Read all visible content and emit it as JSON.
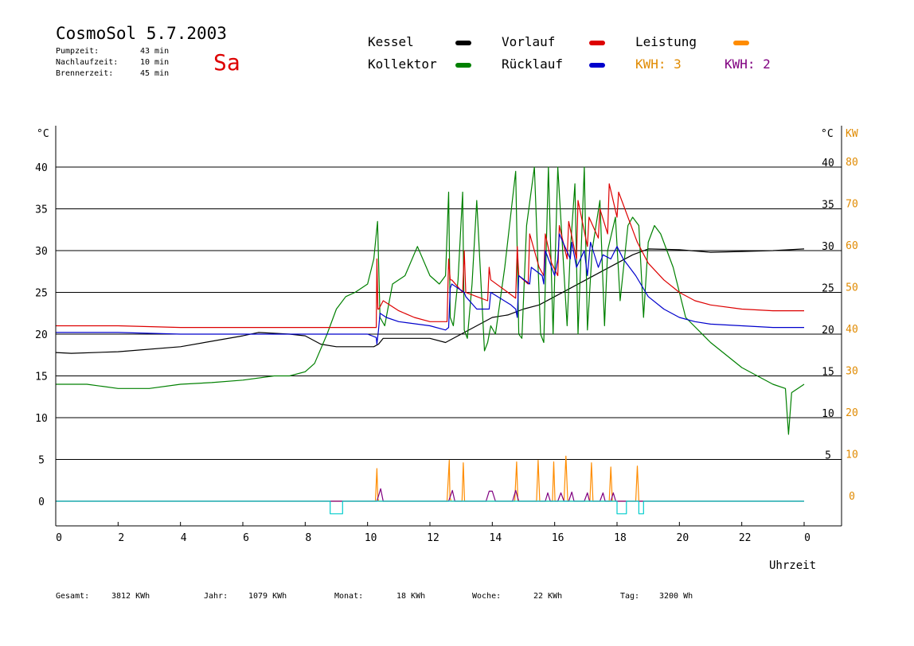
{
  "header": {
    "title": "CosmoSol 5.7.2003",
    "day": "Sa",
    "times": [
      {
        "label": "Pumpzeit:",
        "value": "43 min"
      },
      {
        "label": "Nachlaufzeit:",
        "value": "10 min"
      },
      {
        "label": "Brennerzeit:",
        "value": "45 min"
      }
    ]
  },
  "legend": {
    "kessel": "Kessel",
    "kollektor": "Kollektor",
    "vorlauf": "Vorlauf",
    "ruecklauf": "Rücklauf",
    "leistung": "Leistung",
    "kwh1": "KWH: 3",
    "kwh2": "KWH: 2"
  },
  "colors": {
    "kessel": "#000000",
    "kollektor": "#008000",
    "vorlauf": "#dd0000",
    "ruecklauf": "#0000cc",
    "leistung": "#ff8c00",
    "kwh2": "#800080",
    "pump": "#00cccc",
    "day": "#dd0000",
    "kwh1_text": "#e08a00",
    "kwh2_text": "#800080"
  },
  "footer": {
    "gesamt_label": "Gesamt:",
    "gesamt_value": "3812 KWh",
    "jahr_label": "Jahr:",
    "jahr_value": "1079 KWh",
    "monat_label": "Monat:",
    "monat_value": "18 KWh",
    "woche_label": "Woche:",
    "woche_value": "22 KWh",
    "tag_label": "Tag:",
    "tag_value": "3200 Wh"
  },
  "chart_data": {
    "type": "line",
    "xlabel": "Uhrzeit",
    "ylabel_left": "°C",
    "ylabel_right_1": "°C",
    "ylabel_right_2": "KW",
    "xlim": [
      0,
      24
    ],
    "ylim": [
      -3,
      44
    ],
    "x_ticks": [
      "0",
      "2",
      "4",
      "6",
      "8",
      "10",
      "12",
      "14",
      "16",
      "18",
      "20",
      "22",
      "0"
    ],
    "y_ticks_left": [
      "0",
      "5",
      "10",
      "15",
      "20",
      "25",
      "30",
      "35",
      "40"
    ],
    "y_ticks_right": [
      "5",
      "10",
      "15",
      "20",
      "25",
      "30",
      "35",
      "40"
    ],
    "y_ticks_kw": [
      "0",
      "10",
      "20",
      "30",
      "40",
      "50",
      "60",
      "70",
      "80"
    ],
    "grid": true,
    "series": [
      {
        "name": "Kessel",
        "key": "kessel",
        "x": [
          0,
          0.5,
          2,
          4,
          6,
          6.5,
          7.5,
          8,
          8.5,
          9,
          9.5,
          10.2,
          10.35,
          10.5,
          12,
          12.5,
          13,
          13.5,
          14,
          14.5,
          15,
          15.5,
          16,
          16.5,
          17,
          17.5,
          18,
          18.5,
          19,
          20,
          21,
          22,
          23,
          24
        ],
        "y": [
          17.8,
          17.7,
          17.9,
          18.5,
          19.8,
          20.2,
          20,
          19.8,
          18.8,
          18.5,
          18.5,
          18.5,
          18.8,
          19.5,
          19.5,
          19,
          20,
          21,
          22,
          22.3,
          23,
          23.5,
          24.5,
          25.5,
          26.5,
          27.5,
          28.5,
          29.5,
          30.2,
          30.1,
          29.8,
          29.9,
          30.0,
          30.2
        ]
      },
      {
        "name": "Kollektor",
        "key": "kollektor",
        "x": [
          0,
          1,
          2,
          3,
          4,
          5,
          6,
          7,
          7.5,
          8,
          8.3,
          8.7,
          9.0,
          9.3,
          9.6,
          10,
          10.2,
          10.32,
          10.4,
          10.55,
          10.8,
          11.2,
          11.6,
          12,
          12.3,
          12.5,
          12.6,
          12.65,
          12.75,
          12.9,
          13.05,
          13.1,
          13.2,
          13.35,
          13.5,
          13.75,
          13.85,
          13.95,
          14.1,
          14.4,
          14.75,
          14.85,
          14.95,
          15.1,
          15.35,
          15.55,
          15.65,
          15.8,
          15.95,
          16.1,
          16.4,
          16.5,
          16.65,
          16.75,
          16.95,
          17.05,
          17.2,
          17.45,
          17.6,
          17.7,
          17.95,
          18.1,
          18.35,
          18.5,
          18.7,
          18.85,
          19,
          19.2,
          19.4,
          19.8,
          20.2,
          21,
          22,
          23,
          23.4,
          23.5,
          23.6,
          23.8,
          24
        ],
        "y": [
          14,
          14,
          13.5,
          13.5,
          14,
          14.2,
          14.5,
          15,
          15,
          15.5,
          16.5,
          20,
          23,
          24.5,
          25,
          26,
          29,
          33.5,
          22,
          21,
          26,
          27,
          30.5,
          27,
          26,
          27,
          37,
          22,
          21,
          26.5,
          37,
          20.5,
          19.5,
          26,
          36,
          18,
          19,
          21,
          20,
          28,
          39.5,
          20,
          19.5,
          33,
          40,
          20,
          19,
          40,
          20,
          40,
          21,
          30,
          38,
          20,
          40,
          20.5,
          30,
          36,
          21,
          30,
          34,
          24,
          33,
          34,
          33,
          22,
          31,
          33,
          32,
          28,
          22,
          19,
          16,
          14,
          13.5,
          8,
          13,
          13.5,
          14
        ]
      },
      {
        "name": "Vorlauf",
        "key": "vorlauf",
        "x": [
          0,
          2,
          4,
          8,
          9,
          10,
          10.28,
          10.3,
          10.33,
          10.36,
          10.5,
          11,
          11.5,
          12,
          12.55,
          12.6,
          12.65,
          12.7,
          13.05,
          13.1,
          13.15,
          13.5,
          13.85,
          13.9,
          13.95,
          14.5,
          14.75,
          14.8,
          14.85,
          15.15,
          15.2,
          15.5,
          15.65,
          15.7,
          15.9,
          16.1,
          16.15,
          16.4,
          16.45,
          16.7,
          16.75,
          17.05,
          17.1,
          17.4,
          17.45,
          17.7,
          17.75,
          18,
          18.05,
          18.6,
          18.65,
          19,
          19.5,
          20,
          20.5,
          21,
          22,
          23,
          24
        ],
        "y": [
          21,
          21,
          20.8,
          20.8,
          20.8,
          20.8,
          20.8,
          29,
          23,
          23,
          24,
          22.8,
          22,
          21.5,
          21.5,
          29,
          26.5,
          26.5,
          25,
          30,
          25,
          24.5,
          24,
          28,
          26.5,
          25,
          24.3,
          30.5,
          27,
          26,
          32,
          28,
          27,
          32,
          28.5,
          27,
          33,
          29,
          33.5,
          29,
          36,
          30.5,
          34,
          31.5,
          35,
          32,
          38,
          34,
          37,
          31.5,
          31,
          28.5,
          26.5,
          25,
          24,
          23.5,
          23,
          22.8,
          22.8
        ]
      },
      {
        "name": "Rücklauf",
        "key": "ruecklauf",
        "x": [
          0,
          2,
          4,
          8,
          9,
          10,
          10.28,
          10.3,
          10.35,
          10.4,
          10.6,
          11,
          12,
          12.5,
          12.6,
          12.65,
          12.7,
          13.1,
          13.15,
          13.5,
          13.9,
          13.95,
          14.6,
          14.75,
          14.8,
          14.85,
          15.2,
          15.25,
          15.6,
          15.65,
          15.7,
          16,
          16.1,
          16.15,
          16.5,
          16.55,
          16.7,
          16.95,
          17.05,
          17.15,
          17.4,
          17.55,
          17.8,
          18.0,
          18.2,
          18.6,
          19,
          19.5,
          20,
          20.5,
          21,
          22,
          23,
          24
        ],
        "y": [
          20.2,
          20.2,
          20.0,
          20.0,
          20.0,
          20.0,
          19.6,
          18.8,
          20.5,
          22.5,
          22,
          21.5,
          21,
          20.5,
          20.8,
          25.5,
          26,
          25,
          24.5,
          23,
          23,
          25,
          23.5,
          23,
          22,
          27,
          26,
          28,
          27,
          26,
          30,
          27,
          29,
          32,
          29,
          31,
          28,
          30,
          27,
          31,
          28,
          29.5,
          29,
          30.5,
          29,
          27,
          24.5,
          23,
          22,
          21.5,
          21.2,
          21,
          20.8,
          20.8
        ]
      },
      {
        "name": "Leistung",
        "key": "leistung",
        "x": [
          0,
          10.25,
          10.3,
          10.33,
          10.36,
          12.55,
          12.62,
          12.64,
          12.68,
          13.03,
          13.07,
          13.11,
          14.72,
          14.78,
          14.82,
          15.42,
          15.47,
          15.52,
          15.93,
          15.97,
          16.01,
          16.3,
          16.36,
          16.42,
          17.13,
          17.18,
          17.23,
          17.75,
          17.8,
          17.85,
          18.6,
          18.65,
          18.7,
          24
        ],
        "y": [
          0,
          0,
          3.9,
          0.3,
          0,
          0,
          4.9,
          0.5,
          0,
          0,
          4.6,
          0,
          0,
          4.7,
          0,
          0,
          4.9,
          0,
          0,
          4.7,
          0,
          0,
          5.4,
          0,
          0,
          4.6,
          0,
          0,
          4.1,
          0,
          0,
          4.2,
          0,
          0
        ]
      },
      {
        "name": "KWH2",
        "key": "kwh2",
        "x": [
          0,
          10.3,
          10.42,
          10.5,
          12.6,
          12.72,
          12.8,
          13.8,
          13.9,
          14.0,
          14.1,
          14.65,
          14.75,
          14.85,
          15.7,
          15.78,
          15.86,
          16.1,
          16.2,
          16.3,
          16.45,
          16.55,
          16.62,
          16.95,
          17.05,
          17.12,
          17.45,
          17.55,
          17.62,
          17.8,
          17.88,
          17.96,
          24
        ],
        "y": [
          0,
          0,
          1.5,
          0,
          0,
          1.3,
          0,
          0,
          1.2,
          1.2,
          0,
          0,
          1.3,
          0,
          0,
          1,
          0,
          0,
          1,
          0,
          0,
          1.1,
          0,
          0,
          1,
          0,
          0,
          1,
          0,
          0,
          1,
          0,
          0
        ]
      },
      {
        "name": "Pump",
        "key": "pump",
        "x": [
          0,
          8.8,
          8.8,
          9.2,
          9.2,
          18.0,
          18.0,
          18.3,
          18.3,
          18.7,
          18.7,
          18.85,
          18.85,
          24
        ],
        "y": [
          0,
          0,
          -1.5,
          -1.5,
          0,
          0,
          -1.5,
          -1.5,
          0,
          0,
          -1.5,
          -1.5,
          0,
          0
        ]
      }
    ]
  }
}
